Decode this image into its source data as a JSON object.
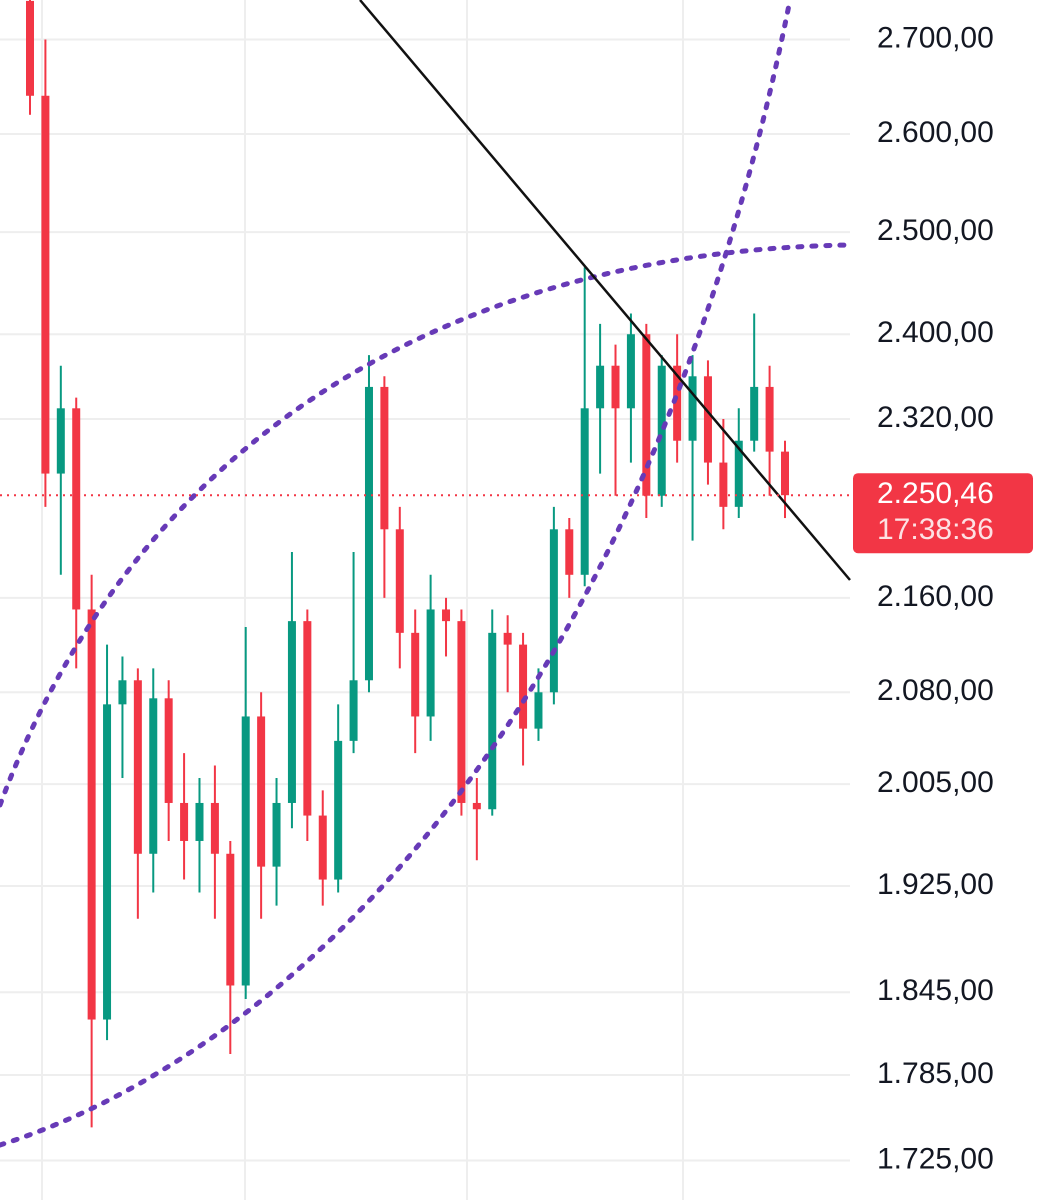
{
  "chart_data": {
    "type": "candlestick",
    "log_scale": true,
    "grid": true,
    "up_color": "#089981",
    "down_color": "#f23645",
    "ylim": [
      1698,
      2743
    ],
    "yticks": [
      {
        "value": 2700,
        "label": "2.700,00"
      },
      {
        "value": 2600,
        "label": "2.600,00"
      },
      {
        "value": 2500,
        "label": "2.500,00"
      },
      {
        "value": 2400,
        "label": "2.400,00"
      },
      {
        "value": 2320,
        "label": "2.320,00"
      },
      {
        "value": 2160,
        "label": "2.160,00"
      },
      {
        "value": 2080,
        "label": "2.080,00"
      },
      {
        "value": 2005,
        "label": "2.005,00"
      },
      {
        "value": 1925,
        "label": "1.925,00"
      },
      {
        "value": 1845,
        "label": "1.845,00"
      },
      {
        "value": 1785,
        "label": "1.785,00"
      },
      {
        "value": 1725,
        "label": "1.725,00"
      }
    ],
    "open": [
      2742,
      2640,
      2270,
      2330,
      2150,
      1825,
      2070,
      2090,
      1950,
      2075,
      1990,
      1960,
      1990,
      1950,
      1850,
      2060,
      1940,
      1990,
      2140,
      1980,
      1930,
      2040,
      2090,
      2350,
      2220,
      2130,
      2060,
      2150,
      2140,
      1990,
      1985,
      2130,
      2120,
      2050,
      2080,
      2220,
      2180,
      2330,
      2370,
      2330,
      2400,
      2250,
      2370,
      2300,
      2360,
      2280,
      2240,
      2300,
      2350,
      2290
    ],
    "high": [
      2743,
      2700,
      2370,
      2340,
      2180,
      2120,
      2110,
      2100,
      2100,
      2090,
      2030,
      2010,
      2020,
      1960,
      2135,
      2080,
      2010,
      2200,
      2150,
      2000,
      2070,
      2200,
      2380,
      2360,
      2240,
      2150,
      2180,
      2160,
      2150,
      2010,
      2150,
      2145,
      2130,
      2100,
      2240,
      2230,
      2465,
      2410,
      2390,
      2420,
      2410,
      2380,
      2400,
      2380,
      2375,
      2320,
      2330,
      2420,
      2370,
      2300
    ],
    "low": [
      2620,
      2240,
      2180,
      2100,
      1748,
      1810,
      2010,
      1900,
      1920,
      1960,
      1930,
      1920,
      1900,
      1800,
      1840,
      1900,
      1910,
      1970,
      1960,
      1910,
      1920,
      2030,
      2080,
      2160,
      2100,
      2030,
      2040,
      2110,
      1980,
      1945,
      1980,
      2080,
      2020,
      2040,
      2070,
      2160,
      2170,
      2270,
      2250,
      2280,
      2230,
      2240,
      2280,
      2210,
      2260,
      2220,
      2230,
      2290,
      2250,
      2230
    ],
    "close": [
      2640,
      2270,
      2330,
      2150,
      1825,
      2070,
      2090,
      1950,
      2075,
      1990,
      1960,
      1990,
      1950,
      1850,
      2060,
      1940,
      1990,
      2140,
      1980,
      1930,
      2040,
      2090,
      2350,
      2220,
      2130,
      2060,
      2150,
      2140,
      1990,
      1985,
      2130,
      2120,
      2050,
      2080,
      2220,
      2180,
      2330,
      2370,
      2330,
      2400,
      2250,
      2370,
      2300,
      2360,
      2280,
      2240,
      2300,
      2350,
      2290,
      2250.46
    ],
    "last_price": {
      "value": 2250.46,
      "label": "2.250,46"
    },
    "countdown": "17:38:36"
  }
}
